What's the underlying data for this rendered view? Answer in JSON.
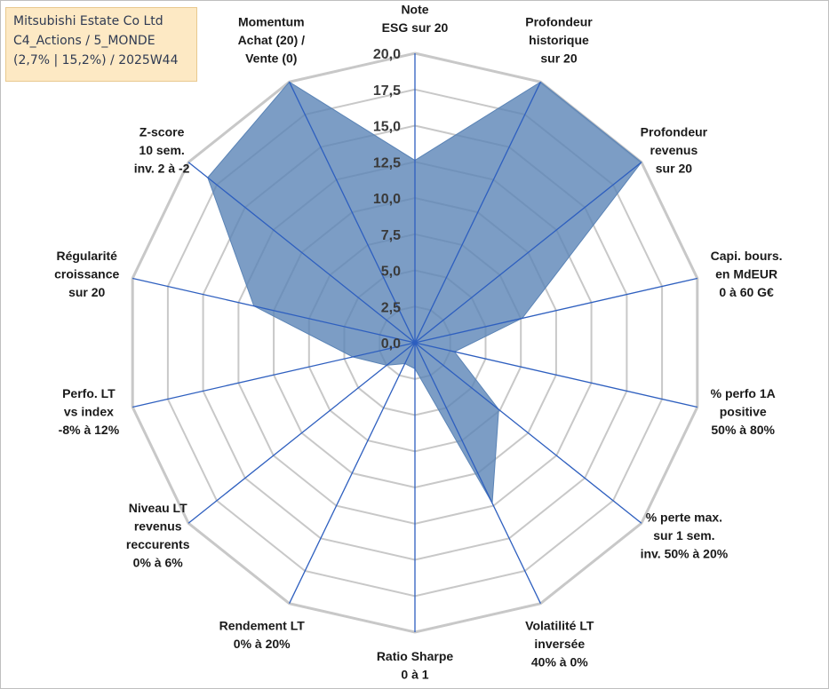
{
  "info_box": {
    "line1": "Mitsubishi Estate Co Ltd",
    "line2": "C4_Actions / 5_MONDE",
    "line3": "(2,7% | 15,2%) / 2025W44"
  },
  "colors": {
    "fill": "#5b84b6",
    "fill_opacity": 0.8,
    "spoke": "#2e5fbf",
    "grid": "#c8c8c8",
    "frame": "#bfbfbf",
    "info_bg": "#fde9c4"
  },
  "chart_data": {
    "type": "radar",
    "rmin": 0,
    "rmax": 20,
    "tick_step": 2.5,
    "tick_labels": [
      "0,0",
      "2,5",
      "5,0",
      "7,5",
      "10,0",
      "12,5",
      "15,0",
      "17,5",
      "20,0"
    ],
    "axes": [
      "Note\nESG sur 20",
      "Profondeur\nhistorique\nsur 20",
      "Profondeur\nrevenus\nsur 20",
      "Capi. bours.\nen MdEUR\n0 à 60 G€",
      "% perfo 1A\npositive\n50% à 80%",
      "% perte max.\nsur 1 sem.\ninv. 50% à 20%",
      "Volatilité LT\ninversée\n40% à 0%",
      "Ratio Sharpe\n0 à 1",
      "Rendement LT\n0% à 20%",
      "Niveau LT\nrevenus\nreccurents\n0% à 6%",
      "Perfo. LT\nvs index\n-8% à 12%",
      "Régularité\ncroissance\nsur 20",
      "Z-score\n10 sem.\ninv. 2 à -2",
      "Momentum\nAchat (20) /\nVente (0)"
    ],
    "series": [
      {
        "values": [
          12.6,
          20.0,
          20.0,
          7.6,
          2.8,
          7.4,
          12.3,
          1.8,
          1.6,
          2.5,
          4.4,
          11.4,
          18.3,
          20.0
        ]
      }
    ],
    "grid": true
  }
}
